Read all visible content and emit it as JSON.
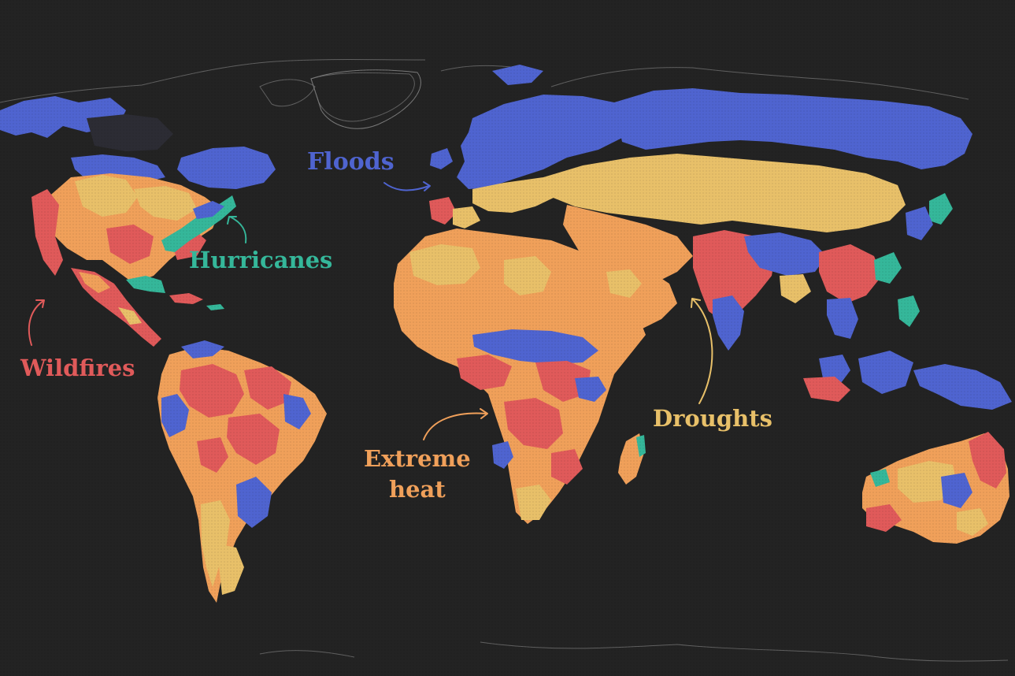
{
  "labels": {
    "floods": "Floods",
    "hurricanes": "Hurricanes",
    "wildfires": "Wildfires",
    "extreme_heat_line1": "Extreme",
    "extreme_heat_line2": "heat",
    "droughts": "Droughts"
  },
  "colors": {
    "background": "#232323",
    "floods": "#4f64d0",
    "hurricanes": "#35b79a",
    "wildfires": "#e05a5a",
    "extreme_heat": "#f0a05a",
    "droughts": "#e8c069",
    "coastline": "#8a8a8a"
  }
}
